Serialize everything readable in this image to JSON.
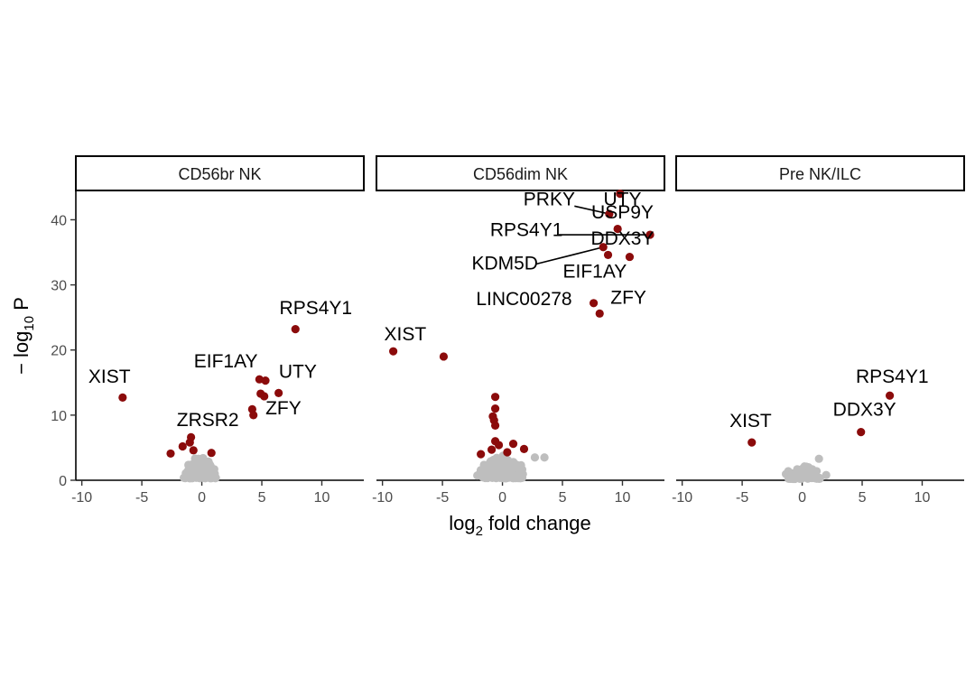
{
  "chart_data": {
    "type": "scatter",
    "subtype": "volcano",
    "xlabel": "log2 fold change",
    "ylabel": "− log10 P",
    "x_ticks": [
      -10,
      -5,
      0,
      5,
      10
    ],
    "x_tick_labels": [
      "-10",
      "-5",
      "0",
      "5",
      "10"
    ],
    "y_ticks": [
      0,
      10,
      20,
      30,
      40
    ],
    "y_tick_labels": [
      "0",
      "10",
      "20",
      "30",
      "40"
    ],
    "xlim": [
      -10.5,
      13.5
    ],
    "ylim": [
      0,
      44.5
    ],
    "colors": {
      "significant": "#8b0b0b",
      "not_significant": "#bebebe",
      "label_line": "#000000"
    },
    "panels": [
      {
        "title": "CD56br NK",
        "points": [
          {
            "x": -6.6,
            "y": 12.7,
            "sig": true,
            "gene": "XIST"
          },
          {
            "x": 7.8,
            "y": 23.2,
            "sig": true,
            "gene": "RPS4Y1"
          },
          {
            "x": 4.8,
            "y": 15.5,
            "sig": true,
            "gene": "EIF1AY"
          },
          {
            "x": 5.3,
            "y": 15.3,
            "sig": true,
            "gene": "UTY"
          },
          {
            "x": 6.4,
            "y": 13.4,
            "sig": true
          },
          {
            "x": 4.9,
            "y": 13.3,
            "sig": true
          },
          {
            "x": 5.2,
            "y": 12.9,
            "sig": true
          },
          {
            "x": 4.2,
            "y": 10.9,
            "sig": true
          },
          {
            "x": 4.3,
            "y": 10.0,
            "sig": true,
            "gene": "ZFY"
          },
          {
            "x": -0.9,
            "y": 6.6,
            "sig": true,
            "gene": "ZRSR2"
          },
          {
            "x": -1.0,
            "y": 5.8,
            "sig": true
          },
          {
            "x": -1.6,
            "y": 5.2,
            "sig": true
          },
          {
            "x": -0.7,
            "y": 4.6,
            "sig": true
          },
          {
            "x": -2.6,
            "y": 4.1,
            "sig": true
          },
          {
            "x": 0.8,
            "y": 4.2,
            "sig": true
          }
        ],
        "labels": [
          {
            "text": "XIST",
            "x": -7.7,
            "y": 15.0
          },
          {
            "text": "RPS4Y1",
            "x": 9.5,
            "y": 25.5
          },
          {
            "text": "EIF1AY",
            "x": 2.0,
            "y": 17.3
          },
          {
            "text": "UTY",
            "x": 8.0,
            "y": 15.7
          },
          {
            "text": "ZFY",
            "x": 6.8,
            "y": 10.1
          },
          {
            "text": "ZRSR2",
            "x": 0.5,
            "y": 8.3
          }
        ],
        "n_grey": 110,
        "grey_x_range": [
          -1.6,
          1.3
        ],
        "grey_y_range": [
          0.3,
          4.0
        ]
      },
      {
        "title": "CD56dim NK",
        "points": [
          {
            "x": 9.8,
            "y": 44.0,
            "sig": true,
            "gene": "UTY"
          },
          {
            "x": 8.9,
            "y": 40.9,
            "sig": true,
            "gene": "PRKY"
          },
          {
            "x": 9.6,
            "y": 38.6,
            "sig": true,
            "gene": "USP9Y"
          },
          {
            "x": 12.3,
            "y": 37.7,
            "sig": true,
            "gene": "RPS4Y1"
          },
          {
            "x": 8.4,
            "y": 35.8,
            "sig": true,
            "gene": "KDM5D"
          },
          {
            "x": 8.8,
            "y": 34.6,
            "sig": true,
            "gene": "EIF1AY"
          },
          {
            "x": 10.6,
            "y": 34.3,
            "sig": true,
            "gene": "DDX3Y"
          },
          {
            "x": 7.6,
            "y": 27.2,
            "sig": true,
            "gene": "LINC00278"
          },
          {
            "x": 8.1,
            "y": 25.6,
            "sig": true,
            "gene": "ZFY"
          },
          {
            "x": -9.1,
            "y": 19.8,
            "sig": true,
            "gene": "XIST"
          },
          {
            "x": -4.9,
            "y": 19.0,
            "sig": true
          },
          {
            "x": -0.6,
            "y": 12.8,
            "sig": true
          },
          {
            "x": -0.6,
            "y": 11.0,
            "sig": true
          },
          {
            "x": -0.8,
            "y": 9.8,
            "sig": true
          },
          {
            "x": -0.7,
            "y": 9.2,
            "sig": true
          },
          {
            "x": -0.6,
            "y": 8.4,
            "sig": true
          },
          {
            "x": -0.6,
            "y": 6.0,
            "sig": true
          },
          {
            "x": -0.3,
            "y": 5.4,
            "sig": true
          },
          {
            "x": 0.9,
            "y": 5.6,
            "sig": true
          },
          {
            "x": 1.8,
            "y": 4.8,
            "sig": true
          },
          {
            "x": -1.8,
            "y": 4.0,
            "sig": true
          },
          {
            "x": -0.9,
            "y": 4.7,
            "sig": true
          },
          {
            "x": 0.4,
            "y": 4.3,
            "sig": true
          }
        ],
        "labels": [
          {
            "text": "PRKY",
            "x": 3.9,
            "y": 42.2
          },
          {
            "text": "UTY",
            "x": 10.0,
            "y": 42.2
          },
          {
            "text": "USP9Y",
            "x": 10.0,
            "y": 40.2
          },
          {
            "text": "RPS4Y1",
            "x": 2.0,
            "y": 37.5
          },
          {
            "text": "DDX3Y",
            "x": 10.0,
            "y": 36.2
          },
          {
            "text": "KDM5D",
            "x": 0.2,
            "y": 32.4
          },
          {
            "text": "EIF1AY",
            "x": 7.7,
            "y": 31.1
          },
          {
            "text": "LINC00278",
            "x": 1.8,
            "y": 26.9
          },
          {
            "text": "ZFY",
            "x": 10.5,
            "y": 27.1
          },
          {
            "text": "XIST",
            "x": -8.1,
            "y": 21.5
          }
        ],
        "label_lines": [
          {
            "from": [
              6.0,
              42.1
            ],
            "to": [
              8.9,
              40.9
            ]
          },
          {
            "from": [
              4.7,
              37.7
            ],
            "to": [
              12.3,
              37.7
            ]
          },
          {
            "from": [
              2.8,
              33.2
            ],
            "to": [
              8.4,
              35.8
            ]
          }
        ],
        "n_grey": 170,
        "grey_x_range": [
          -2.2,
          2.0
        ],
        "grey_y_range": [
          0.3,
          4.0
        ],
        "extra_grey": [
          {
            "x": 2.7,
            "y": 3.5
          },
          {
            "x": 3.5,
            "y": 3.5
          }
        ]
      },
      {
        "title": "Pre NK/ILC",
        "points": [
          {
            "x": 7.3,
            "y": 13.0,
            "sig": true,
            "gene": "RPS4Y1"
          },
          {
            "x": 4.9,
            "y": 7.4,
            "sig": true,
            "gene": "DDX3Y"
          },
          {
            "x": -4.2,
            "y": 5.8,
            "sig": true,
            "gene": "XIST"
          }
        ],
        "labels": [
          {
            "text": "RPS4Y1",
            "x": 7.5,
            "y": 15.0
          },
          {
            "text": "DDX3Y",
            "x": 5.2,
            "y": 9.9
          },
          {
            "text": "XIST",
            "x": -4.3,
            "y": 8.2
          }
        ],
        "n_grey": 70,
        "grey_x_range": [
          -1.5,
          1.6
        ],
        "grey_y_range": [
          0.2,
          2.4
        ],
        "extra_grey": [
          {
            "x": 1.4,
            "y": 3.3
          },
          {
            "x": 2.0,
            "y": 0.8
          }
        ]
      }
    ]
  }
}
